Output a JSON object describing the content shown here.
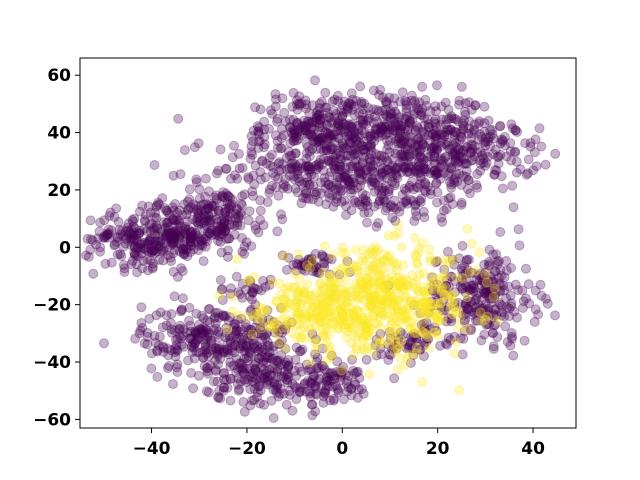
{
  "chart_data": {
    "type": "scatter",
    "title": "",
    "xlabel": "",
    "ylabel": "",
    "xlim": [
      -55,
      49
    ],
    "ylim": [
      -63,
      66
    ],
    "xticks": [
      -40,
      -20,
      0,
      20,
      40
    ],
    "yticks": [
      -60,
      -40,
      -20,
      0,
      20,
      40,
      60
    ],
    "xtick_labels": [
      "−40",
      "−20",
      "0",
      "20",
      "40"
    ],
    "ytick_labels": [
      "−60",
      "−40",
      "−20",
      "0",
      "20",
      "40",
      "60"
    ],
    "grid": false,
    "legend": "none",
    "point_alpha": 0.3,
    "series": [
      {
        "color": "#440154",
        "clusters": [
          {
            "cx": 10,
            "cy": 42,
            "sx": 11,
            "sy": 6,
            "n": 320
          },
          {
            "cx": -5,
            "cy": 43,
            "sx": 6,
            "sy": 6,
            "n": 140
          },
          {
            "cx": 25,
            "cy": 32,
            "sx": 8,
            "sy": 6,
            "n": 240
          },
          {
            "cx": -5,
            "cy": 27,
            "sx": 11,
            "sy": 7,
            "n": 300
          },
          {
            "cx": 12,
            "cy": 20,
            "sx": 8,
            "sy": 6,
            "n": 140
          },
          {
            "cx": -27,
            "cy": 14,
            "sx": 6,
            "sy": 4,
            "n": 90
          },
          {
            "cx": -40,
            "cy": 3,
            "sx": 7,
            "sy": 5,
            "n": 260
          },
          {
            "cx": -28,
            "cy": 6,
            "sx": 5,
            "sy": 5,
            "n": 110
          },
          {
            "cx": -26,
            "cy": -32,
            "sx": 8,
            "sy": 6,
            "n": 300
          },
          {
            "cx": -15,
            "cy": -45,
            "sx": 7,
            "sy": 5,
            "n": 170
          },
          {
            "cx": -3,
            "cy": -48,
            "sx": 5,
            "sy": 4,
            "n": 80
          },
          {
            "cx": 29,
            "cy": -17,
            "sx": 6,
            "sy": 8,
            "n": 250
          },
          {
            "cx": -6,
            "cy": -6,
            "sx": 3,
            "sy": 2,
            "n": 45
          },
          {
            "cx": -19,
            "cy": -15,
            "sx": 2,
            "sy": 2,
            "n": 25
          },
          {
            "cx": 14,
            "cy": -33,
            "sx": 5,
            "sy": 3,
            "n": 60
          }
        ]
      },
      {
        "color": "#fde725",
        "clusters": [
          {
            "cx": 8,
            "cy": -19,
            "sx": 10,
            "sy": 9,
            "n": 520
          },
          {
            "cx": -8,
            "cy": -23,
            "sx": 6,
            "sy": 5,
            "n": 130
          }
        ]
      }
    ]
  }
}
